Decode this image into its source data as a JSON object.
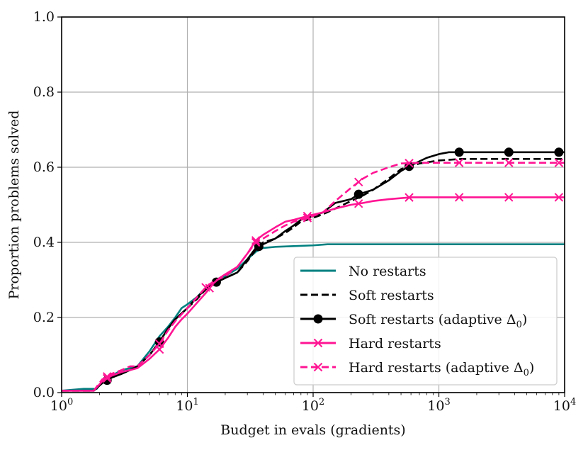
{
  "chart_data": {
    "type": "line",
    "title": "",
    "xlabel": "Budget in evals (gradients)",
    "ylabel": "Proportion problems solved",
    "xscale": "log",
    "xlim": [
      1,
      10000
    ],
    "ylim": [
      0,
      1.0
    ],
    "grid": true,
    "legend_position": "bottom-right",
    "x_ticks": [
      {
        "value": 1,
        "base": "10",
        "exp": "0"
      },
      {
        "value": 10,
        "base": "10",
        "exp": "1"
      },
      {
        "value": 100,
        "base": "10",
        "exp": "2"
      },
      {
        "value": 1000,
        "base": "10",
        "exp": "3"
      },
      {
        "value": 10000,
        "base": "10",
        "exp": "4"
      }
    ],
    "y_ticks": [
      {
        "value": 0.0,
        "label": "0.0"
      },
      {
        "value": 0.2,
        "label": "0.2"
      },
      {
        "value": 0.4,
        "label": "0.4"
      },
      {
        "value": 0.6,
        "label": "0.6"
      },
      {
        "value": 0.8,
        "label": "0.8"
      },
      {
        "value": 1.0,
        "label": "1.0"
      }
    ],
    "series": [
      {
        "name": "No restarts",
        "legend_label": "No restarts",
        "color": "#008080",
        "dash": "solid",
        "marker": "none",
        "points": [
          [
            1,
            0.005
          ],
          [
            1.5,
            0.01
          ],
          [
            1.9,
            0.01
          ],
          [
            2.1,
            0.03
          ],
          [
            2.5,
            0.045
          ],
          [
            3,
            0.06
          ],
          [
            3.5,
            0.065
          ],
          [
            4,
            0.07
          ],
          [
            5,
            0.11
          ],
          [
            6,
            0.15
          ],
          [
            7,
            0.175
          ],
          [
            8,
            0.2
          ],
          [
            9,
            0.225
          ],
          [
            10,
            0.235
          ],
          [
            12,
            0.255
          ],
          [
            14,
            0.28
          ],
          [
            16,
            0.295
          ],
          [
            18,
            0.305
          ],
          [
            20,
            0.31
          ],
          [
            25,
            0.33
          ],
          [
            30,
            0.355
          ],
          [
            35,
            0.375
          ],
          [
            40,
            0.385
          ],
          [
            50,
            0.388
          ],
          [
            70,
            0.39
          ],
          [
            100,
            0.392
          ],
          [
            130,
            0.395
          ],
          [
            300,
            0.395
          ],
          [
            1000,
            0.395
          ],
          [
            10000,
            0.395
          ]
        ]
      },
      {
        "name": "Soft restarts",
        "legend_label": "Soft restarts",
        "color": "#000000",
        "dash": "dashed",
        "marker": "none",
        "points": [
          [
            1,
            0.005
          ],
          [
            1.8,
            0.005
          ],
          [
            2.1,
            0.025
          ],
          [
            2.5,
            0.04
          ],
          [
            3,
            0.05
          ],
          [
            3.5,
            0.06
          ],
          [
            4,
            0.07
          ],
          [
            5,
            0.1
          ],
          [
            6,
            0.135
          ],
          [
            7,
            0.17
          ],
          [
            8,
            0.195
          ],
          [
            10,
            0.225
          ],
          [
            12,
            0.25
          ],
          [
            14,
            0.275
          ],
          [
            16,
            0.29
          ],
          [
            20,
            0.305
          ],
          [
            25,
            0.32
          ],
          [
            30,
            0.35
          ],
          [
            35,
            0.38
          ],
          [
            40,
            0.4
          ],
          [
            50,
            0.41
          ],
          [
            60,
            0.425
          ],
          [
            70,
            0.44
          ],
          [
            80,
            0.455
          ],
          [
            100,
            0.465
          ],
          [
            120,
            0.475
          ],
          [
            150,
            0.49
          ],
          [
            200,
            0.51
          ],
          [
            250,
            0.525
          ],
          [
            300,
            0.54
          ],
          [
            400,
            0.57
          ],
          [
            500,
            0.595
          ],
          [
            700,
            0.61
          ],
          [
            1000,
            0.618
          ],
          [
            1500,
            0.622
          ],
          [
            3000,
            0.622
          ],
          [
            10000,
            0.622
          ]
        ]
      },
      {
        "name": "Soft restarts (adaptive Δ₀)",
        "legend_label": "Soft restarts (adaptive Δ",
        "legend_sub": "0",
        "legend_end": ")",
        "color": "#000000",
        "dash": "solid",
        "marker": "circle",
        "points": [
          [
            1,
            0.005
          ],
          [
            1.8,
            0.005
          ],
          [
            2.1,
            0.025
          ],
          [
            2.5,
            0.04
          ],
          [
            3,
            0.05
          ],
          [
            3.5,
            0.06
          ],
          [
            4,
            0.07
          ],
          [
            5,
            0.1
          ],
          [
            6,
            0.135
          ],
          [
            7,
            0.17
          ],
          [
            8,
            0.195
          ],
          [
            10,
            0.225
          ],
          [
            12,
            0.255
          ],
          [
            14,
            0.275
          ],
          [
            16,
            0.29
          ],
          [
            20,
            0.305
          ],
          [
            25,
            0.32
          ],
          [
            30,
            0.355
          ],
          [
            35,
            0.385
          ],
          [
            40,
            0.395
          ],
          [
            50,
            0.41
          ],
          [
            60,
            0.43
          ],
          [
            70,
            0.445
          ],
          [
            80,
            0.46
          ],
          [
            100,
            0.47
          ],
          [
            120,
            0.48
          ],
          [
            150,
            0.505
          ],
          [
            200,
            0.515
          ],
          [
            230,
            0.528
          ],
          [
            300,
            0.54
          ],
          [
            400,
            0.565
          ],
          [
            500,
            0.59
          ],
          [
            600,
            0.605
          ],
          [
            800,
            0.625
          ],
          [
            1000,
            0.635
          ],
          [
            1200,
            0.64
          ],
          [
            1500,
            0.64
          ],
          [
            3000,
            0.64
          ],
          [
            10000,
            0.64
          ]
        ],
        "marker_x": [
          2.3,
          6,
          17,
          37,
          230,
          580,
          1450,
          3600,
          9000
        ]
      },
      {
        "name": "Hard restarts",
        "legend_label": "Hard restarts",
        "color": "#ff1493",
        "dash": "solid",
        "marker": "x",
        "points": [
          [
            1,
            0.005
          ],
          [
            1.8,
            0.005
          ],
          [
            2.1,
            0.03
          ],
          [
            2.5,
            0.045
          ],
          [
            3,
            0.055
          ],
          [
            3.5,
            0.06
          ],
          [
            4,
            0.065
          ],
          [
            5,
            0.09
          ],
          [
            6,
            0.115
          ],
          [
            7,
            0.145
          ],
          [
            8,
            0.175
          ],
          [
            9,
            0.195
          ],
          [
            10,
            0.21
          ],
          [
            12,
            0.24
          ],
          [
            14,
            0.265
          ],
          [
            16,
            0.29
          ],
          [
            18,
            0.305
          ],
          [
            20,
            0.315
          ],
          [
            25,
            0.335
          ],
          [
            30,
            0.37
          ],
          [
            35,
            0.405
          ],
          [
            40,
            0.42
          ],
          [
            50,
            0.44
          ],
          [
            60,
            0.455
          ],
          [
            70,
            0.46
          ],
          [
            90,
            0.47
          ],
          [
            120,
            0.48
          ],
          [
            150,
            0.49
          ],
          [
            200,
            0.5
          ],
          [
            250,
            0.505
          ],
          [
            300,
            0.51
          ],
          [
            400,
            0.515
          ],
          [
            600,
            0.52
          ],
          [
            1000,
            0.52
          ],
          [
            10000,
            0.52
          ]
        ],
        "marker_x": [
          2.3,
          6,
          15,
          35,
          90,
          230,
          580,
          1450,
          3600,
          9000
        ]
      },
      {
        "name": "Hard restarts (adaptive Δ₀)",
        "legend_label": "Hard restarts (adaptive Δ",
        "legend_sub": "0",
        "legend_end": ")",
        "color": "#ff1493",
        "dash": "dashed",
        "marker": "x",
        "points": [
          [
            1,
            0.005
          ],
          [
            1.8,
            0.005
          ],
          [
            2.1,
            0.035
          ],
          [
            2.5,
            0.05
          ],
          [
            3,
            0.06
          ],
          [
            3.5,
            0.07
          ],
          [
            4,
            0.07
          ],
          [
            5,
            0.1
          ],
          [
            6,
            0.13
          ],
          [
            7,
            0.165
          ],
          [
            8,
            0.19
          ],
          [
            10,
            0.225
          ],
          [
            12,
            0.255
          ],
          [
            14,
            0.28
          ],
          [
            16,
            0.295
          ],
          [
            20,
            0.31
          ],
          [
            25,
            0.335
          ],
          [
            30,
            0.37
          ],
          [
            35,
            0.4
          ],
          [
            40,
            0.41
          ],
          [
            50,
            0.43
          ],
          [
            60,
            0.445
          ],
          [
            70,
            0.455
          ],
          [
            90,
            0.465
          ],
          [
            120,
            0.48
          ],
          [
            150,
            0.51
          ],
          [
            200,
            0.545
          ],
          [
            250,
            0.57
          ],
          [
            300,
            0.585
          ],
          [
            400,
            0.6
          ],
          [
            500,
            0.61
          ],
          [
            700,
            0.612
          ],
          [
            1000,
            0.612
          ],
          [
            10000,
            0.612
          ]
        ],
        "marker_x": [
          2.3,
          6,
          14,
          35,
          90,
          230,
          580,
          1450,
          3600,
          9000
        ]
      }
    ]
  }
}
